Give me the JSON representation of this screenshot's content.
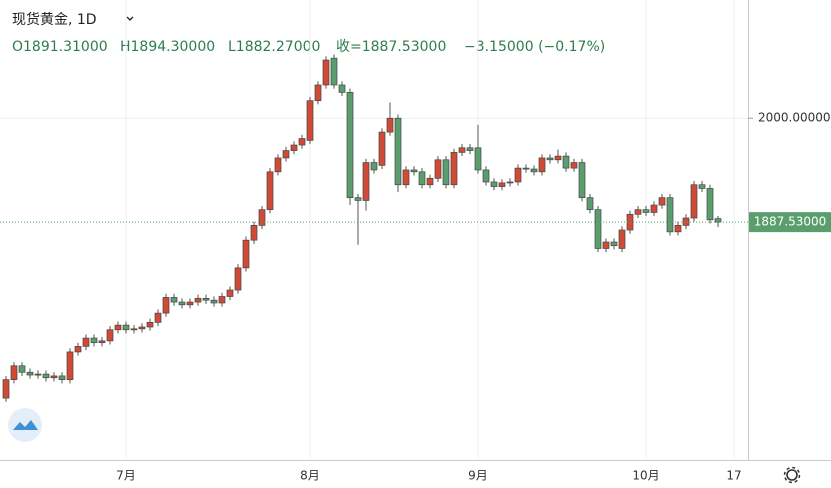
{
  "chart_data": {
    "type": "candlestick",
    "title": "现货黄金, 1D",
    "info": [
      "O1891.31000",
      "H1894.30000",
      "L1882.27000",
      "收=1887.53000",
      "−3.15000 (−0.17%)"
    ],
    "categories": [
      null,
      null,
      null,
      null,
      null,
      null,
      null,
      null,
      null,
      null,
      null,
      null,
      null,
      null,
      null,
      "7月",
      null,
      null,
      null,
      null,
      null,
      null,
      null,
      null,
      null,
      null,
      null,
      null,
      null,
      null,
      null,
      null,
      null,
      null,
      null,
      null,
      null,
      null,
      "8月",
      null,
      null,
      null,
      null,
      null,
      null,
      null,
      null,
      null,
      null,
      null,
      null,
      null,
      null,
      null,
      null,
      null,
      null,
      null,
      null,
      "9月",
      null,
      null,
      null,
      null,
      null,
      null,
      null,
      null,
      null,
      null,
      null,
      null,
      null,
      null,
      null,
      null,
      null,
      null,
      null,
      null,
      "10月",
      null,
      null,
      null,
      null,
      null,
      null,
      null,
      null,
      null,
      null,
      "17",
      null
    ],
    "open": [
      1697,
      1717,
      1732,
      1725,
      1722,
      1723,
      1719,
      1721,
      1717,
      1747,
      1753,
      1762,
      1757,
      1759,
      1771,
      1776,
      1771,
      1772,
      1774,
      1779,
      1789,
      1806,
      1801,
      1798,
      1801,
      1805,
      1803,
      1800,
      1807,
      1814,
      1838,
      1868,
      1884,
      1901,
      1942,
      1957,
      1965,
      1971,
      1976,
      2019,
      2036,
      2065,
      2036,
      2028,
      1914,
      1911,
      1952,
      1949,
      1985,
      2000,
      1928,
      1944,
      1942,
      1928,
      1935,
      1955,
      1928,
      1963,
      1968,
      1968,
      1944,
      1931,
      1926,
      1930,
      1931,
      1946,
      1945,
      1942,
      1957,
      1955,
      1959,
      1946,
      1952,
      1914,
      1901,
      1859,
      1866,
      1859,
      1879,
      1896,
      1901,
      1898,
      1906,
      1914,
      1877,
      1884,
      1892,
      1928,
      1924,
      1891.31,
      null,
      null,
      null
    ],
    "high": [
      1721,
      1736,
      1736,
      1729,
      1727,
      1727,
      1725,
      1725,
      1751,
      1757,
      1766,
      1766,
      1763,
      1775,
      1780,
      1780,
      1776,
      1778,
      1783,
      1793,
      1810,
      1810,
      1805,
      1805,
      1809,
      1809,
      1807,
      1811,
      1818,
      1842,
      1872,
      1888,
      1905,
      1946,
      1961,
      1969,
      1975,
      1982,
      2023,
      2040,
      2067,
      2069,
      2040,
      2032,
      1918,
      1956,
      1956,
      1989,
      2017,
      2004,
      1948,
      1948,
      1946,
      1939,
      1959,
      1959,
      1967,
      1972,
      1972,
      1993,
      1948,
      1935,
      1934,
      1935,
      1950,
      1950,
      1949,
      1961,
      1961,
      1966,
      1963,
      1956,
      1956,
      1918,
      1905,
      1870,
      1870,
      1883,
      1900,
      1905,
      1905,
      1910,
      1918,
      1918,
      1888,
      1896,
      1932,
      1932,
      1928,
      1894.3,
      null,
      null,
      null
    ],
    "low": [
      1693,
      1713,
      1721,
      1718,
      1718,
      1715,
      1715,
      1713,
      1713,
      1743,
      1749,
      1753,
      1753,
      1755,
      1767,
      1767,
      1767,
      1768,
      1770,
      1775,
      1785,
      1797,
      1794,
      1794,
      1797,
      1799,
      1796,
      1796,
      1803,
      1810,
      1834,
      1864,
      1880,
      1897,
      1938,
      1953,
      1961,
      1967,
      1972,
      2015,
      2032,
      2032,
      2024,
      1906,
      1863,
      1900,
      1940,
      1945,
      1981,
      1920,
      1924,
      1938,
      1924,
      1924,
      1931,
      1924,
      1924,
      1959,
      1961,
      1940,
      1927,
      1922,
      1922,
      1926,
      1927,
      1941,
      1938,
      1938,
      1951,
      1951,
      1942,
      1942,
      1910,
      1897,
      1855,
      1855,
      1858,
      1855,
      1875,
      1892,
      1894,
      1894,
      1902,
      1873,
      1873,
      1880,
      1888,
      1920,
      1886,
      1882.27,
      null,
      null,
      null
    ],
    "close": [
      1717,
      1732,
      1725,
      1722,
      1723,
      1719,
      1721,
      1717,
      1747,
      1753,
      1762,
      1757,
      1759,
      1771,
      1776,
      1771,
      1772,
      1774,
      1779,
      1789,
      1806,
      1801,
      1798,
      1801,
      1805,
      1803,
      1800,
      1807,
      1814,
      1838,
      1868,
      1884,
      1901,
      1942,
      1957,
      1965,
      1971,
      1978,
      2019,
      2036,
      2063,
      2036,
      2028,
      1914,
      1911,
      1952,
      1944,
      1985,
      2000,
      1928,
      1944,
      1942,
      1928,
      1935,
      1955,
      1928,
      1963,
      1968,
      1965,
      1944,
      1931,
      1926,
      1930,
      1931,
      1946,
      1945,
      1942,
      1957,
      1955,
      1959,
      1946,
      1952,
      1914,
      1901,
      1859,
      1866,
      1862,
      1879,
      1896,
      1901,
      1898,
      1906,
      1914,
      1877,
      1884,
      1892,
      1928,
      1924,
      1890,
      1887.53,
      null,
      null,
      null
    ],
    "up_color": "#d14a35",
    "down_color": "#5a9e6e",
    "ylim": [
      1630,
      2128
    ],
    "yticks": [
      {
        "value": 2000,
        "label": "2000.00000"
      }
    ],
    "price_line": {
      "value": 1887.53,
      "label": "1887.53000"
    },
    "grid": true
  }
}
